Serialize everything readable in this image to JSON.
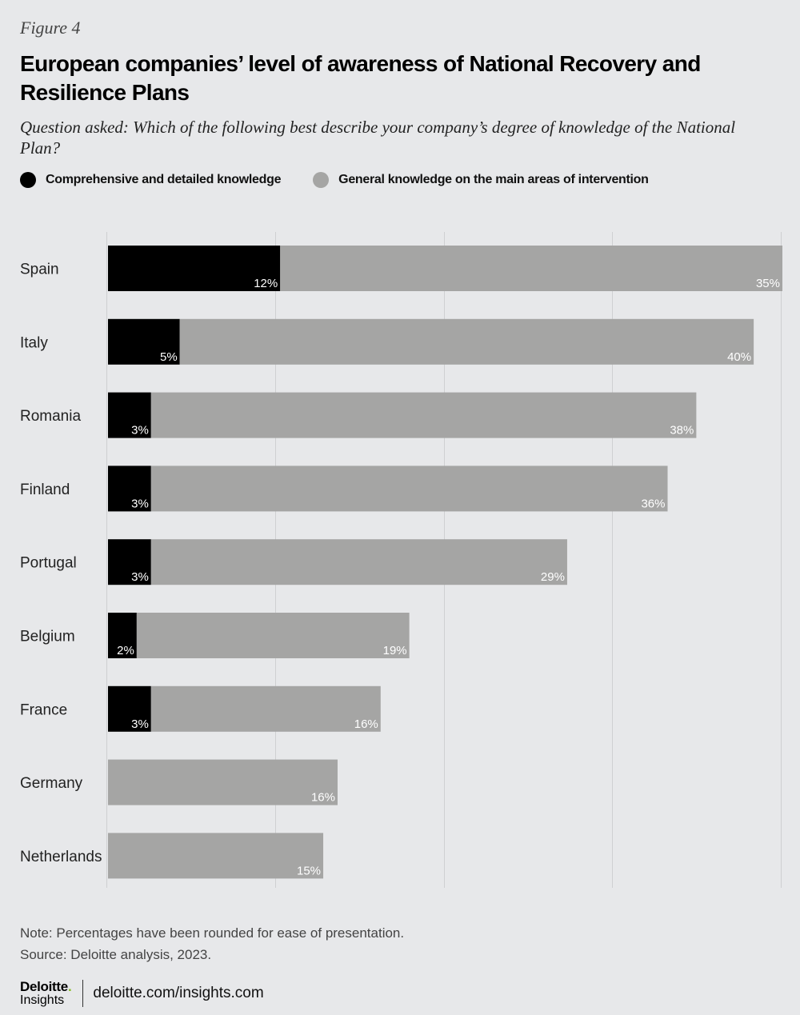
{
  "figure_label": "Figure 4",
  "title": "European companies’ level of awareness of National Recovery and Resilience Plans",
  "subtitle": "Question asked: Which of the following best describe your company’s degree of knowledge of the National Plan?",
  "legend": [
    {
      "label": "Comprehensive and detailed knowledge",
      "color": "#000000"
    },
    {
      "label": "General knowledge on the main areas of intervention",
      "color": "#a5a5a4"
    }
  ],
  "chart_data": {
    "type": "bar",
    "orientation": "horizontal",
    "stacked": true,
    "categories": [
      "Spain",
      "Italy",
      "Romania",
      "Finland",
      "Portugal",
      "Belgium",
      "France",
      "Germany",
      "Netherlands"
    ],
    "series": [
      {
        "name": "Comprehensive and detailed knowledge",
        "color": "#000000",
        "values": [
          12,
          5,
          3,
          3,
          3,
          2,
          3,
          0,
          0
        ],
        "labels": [
          "12%",
          "5%",
          "3%",
          "3%",
          "3%",
          "2%",
          "3%",
          "",
          ""
        ]
      },
      {
        "name": "General knowledge on the main areas of intervention",
        "color": "#a5a5a4",
        "values": [
          35,
          40,
          38,
          36,
          29,
          19,
          16,
          16,
          15
        ],
        "labels": [
          "35%",
          "40%",
          "38%",
          "36%",
          "29%",
          "19%",
          "16%",
          "16%",
          "15%"
        ]
      }
    ],
    "xlim": [
      0,
      47
    ],
    "grid": true,
    "legend_position": "top-left"
  },
  "note": "Note: Percentages have been rounded for ease of presentation.",
  "source": "Source: Deloitte analysis, 2023.",
  "footer": {
    "brand": "Deloitte",
    "brand_dot": ".",
    "brand_sub": "Insights",
    "url": "deloitte.com/insights.com"
  }
}
